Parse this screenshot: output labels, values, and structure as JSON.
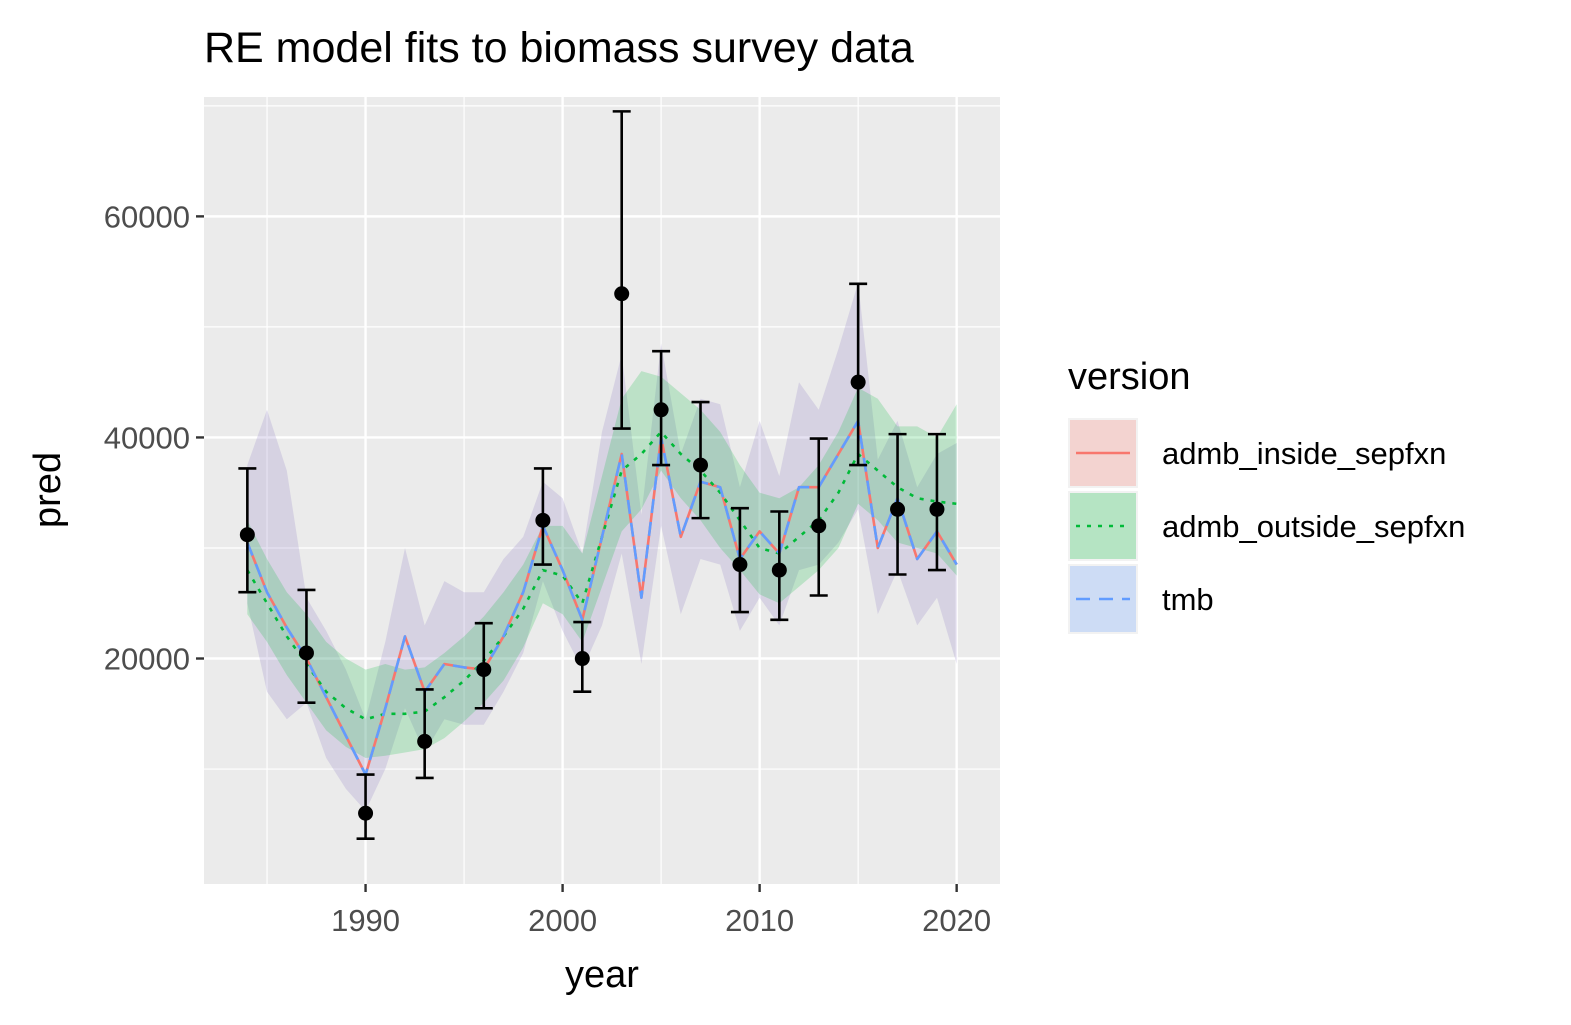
{
  "chart_data": {
    "type": "line",
    "title": "RE model fits to biomass survey data",
    "xlabel": "year",
    "ylabel": "pred",
    "xlim": [
      1981.8,
      2022.2
    ],
    "ylim": [
      -400,
      70800
    ],
    "x_ticks": [
      1990,
      2000,
      2010,
      2020
    ],
    "x_minor_ticks": [
      1985,
      1995,
      2005,
      2015
    ],
    "y_ticks": [
      20000,
      40000,
      60000
    ],
    "y_minor_ticks": [
      10000,
      30000,
      50000,
      70000
    ],
    "grid": true,
    "legend": {
      "title": "version",
      "position": "right",
      "entries": [
        "admb_inside_sepfxn",
        "admb_outside_sepfxn",
        "tmb"
      ]
    },
    "colors": {
      "panel": "#EBEBEB",
      "grid": "#FFFFFF",
      "admb_inside_sepfxn": "#F8766D",
      "admb_outside_sepfxn": "#00BA38",
      "tmb": "#619CFF",
      "tmb_ribbon_overlap": "#8E7CC3",
      "observations": "#000000"
    },
    "series": [
      {
        "name": "admb_inside_sepfxn",
        "linetype": "solid",
        "x": [
          1984,
          1985,
          1986,
          1987,
          1988,
          1989,
          1990,
          1991,
          1992,
          1993,
          1994,
          1995,
          1996,
          1997,
          1998,
          1999,
          2000,
          2001,
          2002,
          2003,
          2004,
          2005,
          2006,
          2007,
          2008,
          2009,
          2010,
          2011,
          2012,
          2013,
          2014,
          2015,
          2016,
          2017,
          2018,
          2019,
          2020
        ],
        "values": [
          30500,
          26000,
          22800,
          20000,
          16500,
          13000,
          9500,
          15500,
          22000,
          17000,
          19500,
          19200,
          19000,
          22000,
          26000,
          32000,
          28000,
          23500,
          31000,
          38500,
          25500,
          40000,
          31000,
          36000,
          35500,
          29000,
          31500,
          29500,
          35500,
          35500,
          38500,
          41500,
          30000,
          34500,
          29000,
          31500,
          28500
        ],
        "lower": [
          25000,
          17000,
          14500,
          16000,
          11000,
          8200,
          6200,
          10000,
          15500,
          11500,
          14500,
          14000,
          14000,
          17000,
          20500,
          27000,
          22500,
          19000,
          23000,
          29500,
          19500,
          32000,
          24000,
          29000,
          28500,
          22500,
          25500,
          23000,
          28000,
          28500,
          30500,
          33500,
          24000,
          28000,
          23000,
          25500,
          19500
        ],
        "upper": [
          37500,
          42500,
          37000,
          25500,
          22500,
          19000,
          14500,
          21500,
          30000,
          23000,
          27000,
          26000,
          26000,
          29000,
          31000,
          36000,
          34500,
          29500,
          40500,
          47500,
          33000,
          48500,
          38500,
          43500,
          43000,
          35500,
          41500,
          36500,
          45000,
          42500,
          48000,
          54000,
          38000,
          41500,
          35500,
          38500,
          39500
        ]
      },
      {
        "name": "admb_outside_sepfxn",
        "linetype": "dotted",
        "x": [
          1984,
          1985,
          1986,
          1987,
          1988,
          1989,
          1990,
          1991,
          1992,
          1993,
          1994,
          1995,
          1996,
          1997,
          1998,
          1999,
          2000,
          2001,
          2002,
          2003,
          2004,
          2005,
          2006,
          2007,
          2008,
          2009,
          2010,
          2011,
          2012,
          2013,
          2014,
          2015,
          2016,
          2017,
          2018,
          2019,
          2020
        ],
        "values": [
          28000,
          25000,
          22000,
          19500,
          17000,
          15500,
          14500,
          15000,
          15000,
          15200,
          16500,
          18000,
          19800,
          22000,
          24500,
          28000,
          27500,
          25000,
          31000,
          37000,
          38500,
          40500,
          38500,
          37000,
          35000,
          32500,
          30000,
          29500,
          31000,
          32500,
          35000,
          38500,
          37000,
          35500,
          34500,
          34200,
          34000
        ],
        "lower": [
          24000,
          21500,
          18500,
          16000,
          13500,
          12000,
          11000,
          11200,
          11500,
          11800,
          12800,
          14300,
          16000,
          18000,
          21000,
          25000,
          24000,
          21500,
          26500,
          31500,
          33500,
          37000,
          34500,
          32500,
          30000,
          28000,
          25800,
          25000,
          26500,
          28000,
          30000,
          34000,
          32500,
          30500,
          30000,
          29500,
          27500
        ],
        "upper": [
          32500,
          29000,
          26000,
          24000,
          21500,
          20000,
          19000,
          19500,
          19000,
          19200,
          20500,
          22000,
          23800,
          26000,
          28500,
          32000,
          32000,
          29500,
          36500,
          43500,
          46000,
          45500,
          44000,
          42500,
          40500,
          37500,
          35000,
          34500,
          35500,
          37500,
          40500,
          44500,
          43500,
          41000,
          41000,
          40000,
          43000
        ]
      },
      {
        "name": "tmb",
        "linetype": "dashed",
        "x": [
          1984,
          1985,
          1986,
          1987,
          1988,
          1989,
          1990,
          1991,
          1992,
          1993,
          1994,
          1995,
          1996,
          1997,
          1998,
          1999,
          2000,
          2001,
          2002,
          2003,
          2004,
          2005,
          2006,
          2007,
          2008,
          2009,
          2010,
          2011,
          2012,
          2013,
          2014,
          2015,
          2016,
          2017,
          2018,
          2019,
          2020
        ],
        "values": [
          30500,
          26000,
          22800,
          20000,
          16500,
          13000,
          9500,
          15500,
          22000,
          17000,
          19500,
          19200,
          19000,
          22000,
          26000,
          32000,
          28000,
          23500,
          31000,
          38500,
          25500,
          40000,
          31000,
          36000,
          35500,
          29000,
          31500,
          29500,
          35500,
          35500,
          38500,
          41500,
          30000,
          34500,
          29000,
          31500,
          28500
        ]
      }
    ],
    "observations": {
      "name": "survey",
      "x": [
        1984,
        1987,
        1990,
        1993,
        1996,
        1999,
        2001,
        2003,
        2005,
        2007,
        2009,
        2011,
        2013,
        2015,
        2017,
        2019
      ],
      "values": [
        31200,
        20500,
        6000,
        12500,
        19000,
        32500,
        20000,
        53000,
        42500,
        37500,
        28500,
        28000,
        32000,
        45000,
        33500,
        33500
      ],
      "lower": [
        26000,
        16000,
        3700,
        9200,
        15500,
        28500,
        17000,
        40800,
        37500,
        32700,
        24200,
        23500,
        25700,
        37500,
        27600,
        28000
      ],
      "upper": [
        37200,
        26200,
        9500,
        17200,
        23200,
        37200,
        23300,
        69500,
        47800,
        43200,
        33600,
        33300,
        39900,
        53900,
        40300,
        40300
      ]
    }
  }
}
